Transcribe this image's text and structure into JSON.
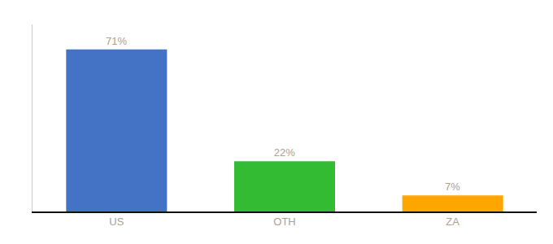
{
  "chart_data": {
    "type": "bar",
    "categories": [
      "US",
      "OTH",
      "ZA"
    ],
    "values": [
      71,
      22,
      7
    ],
    "value_labels": [
      "71%",
      "22%",
      "7%"
    ],
    "data_labels": true,
    "colors": [
      "#4472C4",
      "#33BB33",
      "#FFA500"
    ],
    "ylim": [
      0,
      82
    ],
    "yticks": [],
    "grid": false,
    "tick_labels": "x"
  }
}
